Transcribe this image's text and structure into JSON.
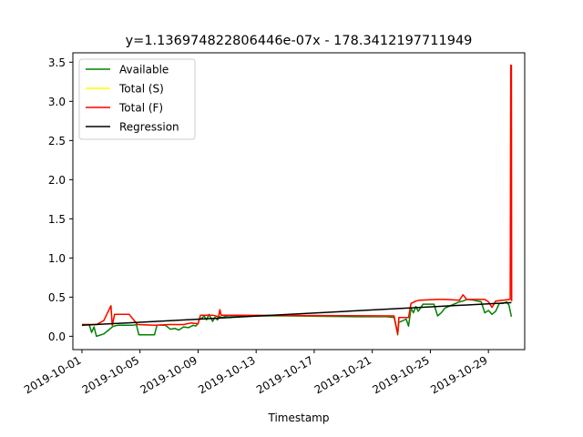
{
  "chart_data": {
    "type": "line",
    "title": "y=1.136974822806446e-07x - 178.3412197711949",
    "xlabel": "Timestamp",
    "ylabel": "",
    "x_type": "date",
    "xlim": [
      "2019-09-30T09:00",
      "2019-10-31T12:00"
    ],
    "ylim": [
      -0.17,
      3.62
    ],
    "yticks": [
      0.0,
      0.5,
      1.0,
      1.5,
      2.0,
      2.5,
      3.0,
      3.5
    ],
    "yticklabels": [
      "0.0",
      "0.5",
      "1.0",
      "1.5",
      "2.0",
      "2.5",
      "3.0",
      "3.5"
    ],
    "xticks": [
      "2019-10-01",
      "2019-10-05",
      "2019-10-09",
      "2019-10-13",
      "2019-10-17",
      "2019-10-21",
      "2019-10-25",
      "2019-10-29"
    ],
    "xticklabels": [
      "2019-10-01",
      "2019-10-05",
      "2019-10-09",
      "2019-10-13",
      "2019-10-17",
      "2019-10-21",
      "2019-10-25",
      "2019-10-29"
    ],
    "legend_position": "top-left",
    "grid": false,
    "series": [
      {
        "name": "Available",
        "color": "#008000",
        "points": [
          [
            "2019-10-01T00:00",
            0.15
          ],
          [
            "2019-10-01T12:00",
            0.15
          ],
          [
            "2019-10-01T16:00",
            0.05
          ],
          [
            "2019-10-01T20:00",
            0.12
          ],
          [
            "2019-10-02T00:00",
            0.0
          ],
          [
            "2019-10-02T12:00",
            0.03
          ],
          [
            "2019-10-02T20:00",
            0.08
          ],
          [
            "2019-10-03T04:00",
            0.13
          ],
          [
            "2019-10-03T12:00",
            0.14
          ],
          [
            "2019-10-04T12:00",
            0.14
          ],
          [
            "2019-10-04T18:00",
            0.15
          ],
          [
            "2019-10-04T22:00",
            0.02
          ],
          [
            "2019-10-05T12:00",
            0.02
          ],
          [
            "2019-10-06T00:00",
            0.02
          ],
          [
            "2019-10-06T04:00",
            0.14
          ],
          [
            "2019-10-06T18:00",
            0.14
          ],
          [
            "2019-10-07T02:00",
            0.09
          ],
          [
            "2019-10-07T10:00",
            0.1
          ],
          [
            "2019-10-07T16:00",
            0.08
          ],
          [
            "2019-10-08T00:00",
            0.12
          ],
          [
            "2019-10-08T08:00",
            0.11
          ],
          [
            "2019-10-08T16:00",
            0.14
          ],
          [
            "2019-10-08T20:00",
            0.13
          ],
          [
            "2019-10-09T00:00",
            0.16
          ],
          [
            "2019-10-09T02:00",
            0.22
          ],
          [
            "2019-10-09T06:00",
            0.23
          ],
          [
            "2019-10-09T10:00",
            0.26
          ],
          [
            "2019-10-09T14:00",
            0.21
          ],
          [
            "2019-10-09T18:00",
            0.28
          ],
          [
            "2019-10-10T00:00",
            0.19
          ],
          [
            "2019-10-10T04:00",
            0.24
          ],
          [
            "2019-10-10T08:00",
            0.21
          ],
          [
            "2019-10-10T12:00",
            0.25
          ],
          [
            "2019-10-10T16:00",
            0.24
          ],
          [
            "2019-10-11T00:00",
            0.26
          ],
          [
            "2019-10-15T00:00",
            0.26
          ],
          [
            "2019-10-20T00:00",
            0.25
          ],
          [
            "2019-10-22T00:00",
            0.25
          ],
          [
            "2019-10-22T12:00",
            0.24
          ],
          [
            "2019-10-22T18:00",
            0.02
          ],
          [
            "2019-10-22T20:00",
            0.18
          ],
          [
            "2019-10-23T00:00",
            0.19
          ],
          [
            "2019-10-23T08:00",
            0.22
          ],
          [
            "2019-10-23T12:00",
            0.13
          ],
          [
            "2019-10-23T16:00",
            0.36
          ],
          [
            "2019-10-23T20:00",
            0.3
          ],
          [
            "2019-10-24T00:00",
            0.38
          ],
          [
            "2019-10-24T04:00",
            0.32
          ],
          [
            "2019-10-24T12:00",
            0.41
          ],
          [
            "2019-10-25T06:00",
            0.41
          ],
          [
            "2019-10-25T12:00",
            0.26
          ],
          [
            "2019-10-25T18:00",
            0.3
          ],
          [
            "2019-10-26T00:00",
            0.36
          ],
          [
            "2019-10-26T12:00",
            0.4
          ],
          [
            "2019-10-27T00:00",
            0.44
          ],
          [
            "2019-10-27T06:00",
            0.45
          ],
          [
            "2019-10-27T12:00",
            0.47
          ],
          [
            "2019-10-28T00:00",
            0.46
          ],
          [
            "2019-10-28T12:00",
            0.44
          ],
          [
            "2019-10-28T18:00",
            0.3
          ],
          [
            "2019-10-29T00:00",
            0.33
          ],
          [
            "2019-10-29T06:00",
            0.28
          ],
          [
            "2019-10-29T12:00",
            0.32
          ],
          [
            "2019-10-29T18:00",
            0.42
          ],
          [
            "2019-10-30T00:00",
            0.42
          ],
          [
            "2019-10-30T06:00",
            0.44
          ],
          [
            "2019-10-30T10:00",
            0.4
          ],
          [
            "2019-10-30T14:00",
            0.25
          ]
        ]
      },
      {
        "name": "Total (S)",
        "color": "#ffff00",
        "points": [
          [
            "2019-10-01T00:00",
            0.15
          ],
          [
            "2019-10-02T00:00",
            0.15
          ],
          [
            "2019-10-02T12:00",
            0.2
          ],
          [
            "2019-10-03T00:00",
            0.39
          ],
          [
            "2019-10-03T02:00",
            0.14
          ],
          [
            "2019-10-03T06:00",
            0.28
          ],
          [
            "2019-10-04T06:00",
            0.28
          ],
          [
            "2019-10-04T20:00",
            0.15
          ],
          [
            "2019-10-06T00:00",
            0.14
          ],
          [
            "2019-10-07T00:00",
            0.15
          ],
          [
            "2019-10-08T00:00",
            0.15
          ],
          [
            "2019-10-08T12:00",
            0.17
          ],
          [
            "2019-10-09T00:00",
            0.16
          ],
          [
            "2019-10-09T04:00",
            0.27
          ],
          [
            "2019-10-10T00:00",
            0.27
          ],
          [
            "2019-10-10T10:00",
            0.25
          ],
          [
            "2019-10-10T12:00",
            0.34
          ],
          [
            "2019-10-10T14:00",
            0.27
          ],
          [
            "2019-10-22T12:00",
            0.26
          ],
          [
            "2019-10-22T18:00",
            0.03
          ],
          [
            "2019-10-22T20:00",
            0.24
          ],
          [
            "2019-10-23T12:00",
            0.24
          ],
          [
            "2019-10-23T16:00",
            0.42
          ],
          [
            "2019-10-24T00:00",
            0.45
          ],
          [
            "2019-10-24T06:00",
            0.46
          ],
          [
            "2019-10-25T12:00",
            0.47
          ],
          [
            "2019-10-26T00:00",
            0.47
          ],
          [
            "2019-10-27T00:00",
            0.46
          ],
          [
            "2019-10-27T06:00",
            0.53
          ],
          [
            "2019-10-27T12:00",
            0.47
          ],
          [
            "2019-10-28T00:00",
            0.47
          ],
          [
            "2019-10-28T18:00",
            0.47
          ],
          [
            "2019-10-29T00:00",
            0.44
          ],
          [
            "2019-10-29T06:00",
            0.37
          ],
          [
            "2019-10-29T12:00",
            0.45
          ],
          [
            "2019-10-30T00:00",
            0.46
          ],
          [
            "2019-10-30T12:00",
            0.47
          ],
          [
            "2019-10-30T13:00",
            3.46
          ],
          [
            "2019-10-30T14:00",
            3.46
          ],
          [
            "2019-10-30T14:30",
            0.45
          ]
        ]
      },
      {
        "name": "Total (F)",
        "color": "#ff0000",
        "points": [
          [
            "2019-10-01T00:00",
            0.15
          ],
          [
            "2019-10-02T00:00",
            0.15
          ],
          [
            "2019-10-02T12:00",
            0.2
          ],
          [
            "2019-10-03T00:00",
            0.39
          ],
          [
            "2019-10-03T02:00",
            0.14
          ],
          [
            "2019-10-03T06:00",
            0.28
          ],
          [
            "2019-10-04T06:00",
            0.28
          ],
          [
            "2019-10-04T20:00",
            0.15
          ],
          [
            "2019-10-06T00:00",
            0.14
          ],
          [
            "2019-10-07T00:00",
            0.15
          ],
          [
            "2019-10-08T00:00",
            0.15
          ],
          [
            "2019-10-08T12:00",
            0.17
          ],
          [
            "2019-10-09T00:00",
            0.16
          ],
          [
            "2019-10-09T04:00",
            0.27
          ],
          [
            "2019-10-10T00:00",
            0.27
          ],
          [
            "2019-10-10T10:00",
            0.25
          ],
          [
            "2019-10-10T12:00",
            0.34
          ],
          [
            "2019-10-10T14:00",
            0.27
          ],
          [
            "2019-10-22T12:00",
            0.26
          ],
          [
            "2019-10-22T18:00",
            0.03
          ],
          [
            "2019-10-22T20:00",
            0.24
          ],
          [
            "2019-10-23T12:00",
            0.24
          ],
          [
            "2019-10-23T16:00",
            0.42
          ],
          [
            "2019-10-24T00:00",
            0.45
          ],
          [
            "2019-10-24T06:00",
            0.46
          ],
          [
            "2019-10-25T12:00",
            0.47
          ],
          [
            "2019-10-26T00:00",
            0.47
          ],
          [
            "2019-10-27T00:00",
            0.46
          ],
          [
            "2019-10-27T06:00",
            0.53
          ],
          [
            "2019-10-27T12:00",
            0.47
          ],
          [
            "2019-10-28T00:00",
            0.47
          ],
          [
            "2019-10-28T18:00",
            0.47
          ],
          [
            "2019-10-29T00:00",
            0.44
          ],
          [
            "2019-10-29T06:00",
            0.37
          ],
          [
            "2019-10-29T12:00",
            0.45
          ],
          [
            "2019-10-30T00:00",
            0.46
          ],
          [
            "2019-10-30T12:00",
            0.47
          ],
          [
            "2019-10-30T13:00",
            3.46
          ],
          [
            "2019-10-30T14:00",
            3.46
          ],
          [
            "2019-10-30T14:30",
            0.45
          ]
        ]
      },
      {
        "name": "Regression",
        "color": "#000000",
        "points": [
          [
            "2019-10-01T00:00",
            0.14
          ],
          [
            "2019-10-30T14:00",
            0.43
          ]
        ]
      }
    ]
  }
}
